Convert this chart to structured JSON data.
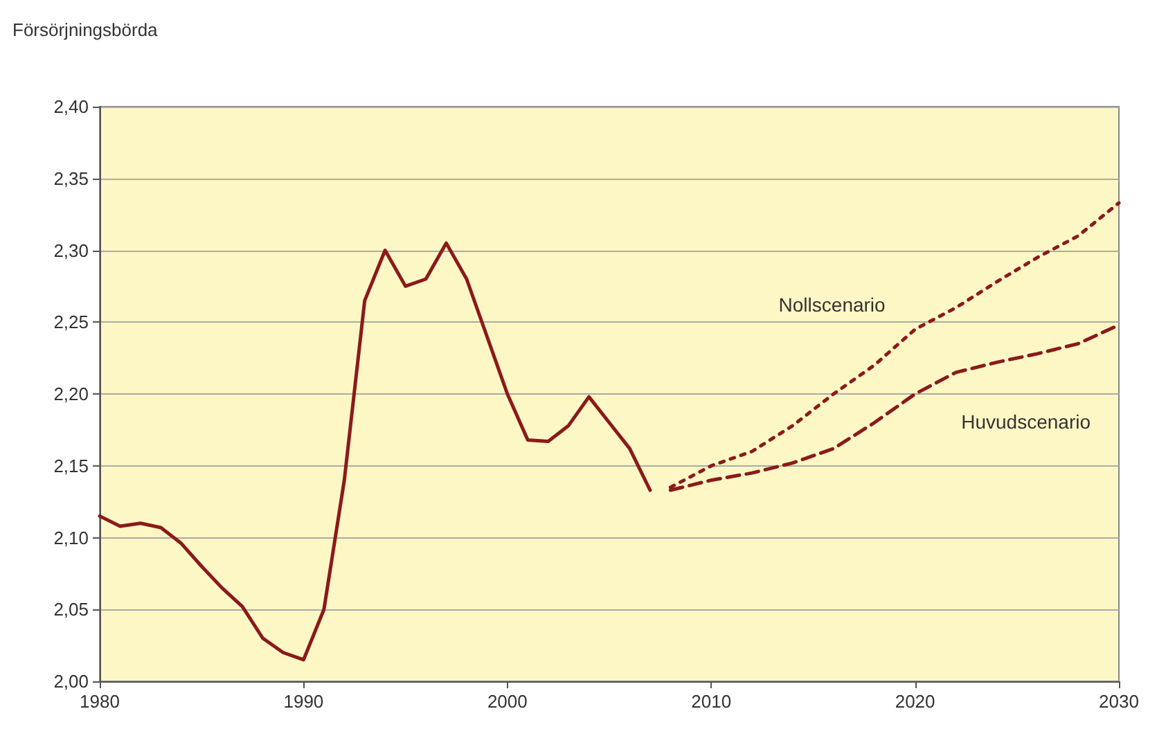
{
  "chart_data": {
    "type": "line",
    "ylabel": "Försörjningsbörda",
    "xlim": [
      1980,
      2030
    ],
    "xticks": [
      1980,
      1990,
      2000,
      2010,
      2020,
      2030
    ],
    "ylim": [
      2.0,
      2.4
    ],
    "yticks": [
      {
        "value": 2.0,
        "label": "2,00"
      },
      {
        "value": 2.05,
        "label": "2,05"
      },
      {
        "value": 2.1,
        "label": "2,10"
      },
      {
        "value": 2.15,
        "label": "2,15"
      },
      {
        "value": 2.2,
        "label": "2,20"
      },
      {
        "value": 2.25,
        "label": "2,25"
      },
      {
        "value": 2.3,
        "label": "2,30"
      },
      {
        "value": 2.35,
        "label": "2,35"
      },
      {
        "value": 2.4,
        "label": "2,40"
      }
    ],
    "grid": "y",
    "legend": false,
    "marker": "none",
    "series": [
      {
        "color": "#8b1a1a",
        "line_style": "solid",
        "x": [
          1980,
          1981,
          1982,
          1983,
          1984,
          1985,
          1986,
          1987,
          1988,
          1989,
          1990,
          1991,
          1992,
          1993,
          1994,
          1995,
          1996,
          1997,
          1998,
          1999,
          2000,
          2001,
          2002,
          2003,
          2004,
          2005,
          2006,
          2007
        ],
        "values": [
          2.115,
          2.108,
          2.11,
          2.107,
          2.096,
          2.08,
          2.065,
          2.052,
          2.03,
          2.02,
          2.015,
          2.05,
          2.14,
          2.265,
          2.3,
          2.275,
          2.28,
          2.305,
          2.28,
          2.24,
          2.2,
          2.168,
          2.167,
          2.178,
          2.198,
          2.18,
          2.162,
          2.133
        ]
      },
      {
        "name": "Nollscenario",
        "color": "#8b1a1a",
        "line_style": "dotted",
        "x": [
          2008,
          2010,
          2012,
          2014,
          2016,
          2018,
          2020,
          2022,
          2024,
          2026,
          2028,
          2030
        ],
        "values": [
          2.135,
          2.15,
          2.16,
          2.178,
          2.2,
          2.22,
          2.245,
          2.26,
          2.278,
          2.295,
          2.31,
          2.333
        ]
      },
      {
        "name": "Huvudscenario",
        "color": "#8b1a1a",
        "line_style": "dashed",
        "x": [
          2008,
          2010,
          2012,
          2014,
          2016,
          2018,
          2020,
          2022,
          2024,
          2026,
          2028,
          2030
        ],
        "values": [
          2.133,
          2.14,
          2.145,
          2.152,
          2.162,
          2.18,
          2.2,
          2.215,
          2.222,
          2.228,
          2.235,
          2.248
        ]
      }
    ]
  }
}
